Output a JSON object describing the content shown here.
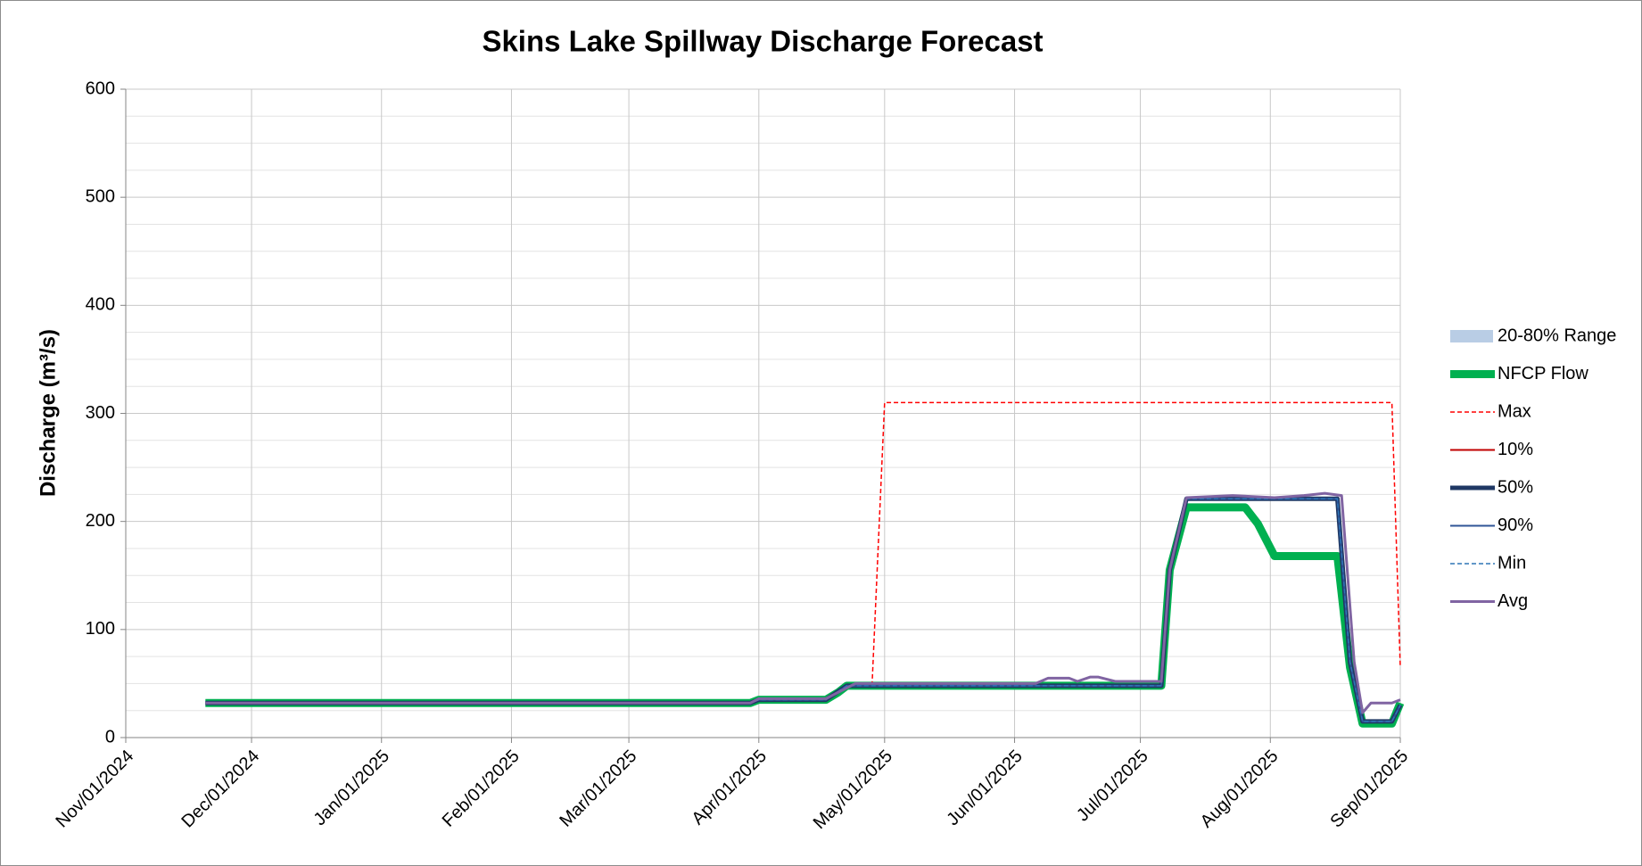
{
  "chart_data": {
    "type": "line",
    "title": "Skins Lake Spillway Discharge Forecast",
    "y_label": "Discharge (m³/s)",
    "xlim": [
      "2024-11-01",
      "2025-09-01"
    ],
    "xticks": [
      {
        "value": "2024-11-01",
        "label": "Nov/01/2024"
      },
      {
        "value": "2024-12-01",
        "label": "Dec/01/2024"
      },
      {
        "value": "2025-01-01",
        "label": "Jan/01/2025"
      },
      {
        "value": "2025-02-01",
        "label": "Feb/01/2025"
      },
      {
        "value": "2025-03-01",
        "label": "Mar/01/2025"
      },
      {
        "value": "2025-04-01",
        "label": "Apr/01/2025"
      },
      {
        "value": "2025-05-01",
        "label": "May/01/2025"
      },
      {
        "value": "2025-06-01",
        "label": "Jun/01/2025"
      },
      {
        "value": "2025-07-01",
        "label": "Jul/01/2025"
      },
      {
        "value": "2025-08-01",
        "label": "Aug/01/2025"
      },
      {
        "value": "2025-09-01",
        "label": "Sep/01/2025"
      }
    ],
    "ylim": [
      0,
      600
    ],
    "yticks": [
      0,
      100,
      200,
      300,
      400,
      500,
      600
    ],
    "yminorticks": [
      25,
      50,
      75,
      125,
      150,
      175,
      225,
      250,
      275,
      325,
      350,
      375,
      425,
      450,
      475,
      525,
      550,
      575
    ],
    "grid": true,
    "legend": "right",
    "series": [
      {
        "name": "20-80% Range",
        "kind": "range",
        "color": "#b9cde5",
        "x": [
          "2024-11-20",
          "2025-03-30",
          "2025-04-01",
          "2025-04-17",
          "2025-04-22",
          "2025-07-06",
          "2025-07-08",
          "2025-07-12",
          "2025-08-17",
          "2025-08-20",
          "2025-08-23",
          "2025-08-30",
          "2025-09-01"
        ],
        "values_low": [
          32,
          32,
          35,
          35,
          48,
          48,
          155,
          221,
          221,
          70,
          15,
          15,
          30
        ],
        "values": [
          32,
          32,
          35,
          35,
          48,
          48,
          155,
          221,
          221,
          70,
          15,
          15,
          30
        ]
      },
      {
        "name": "NFCP Flow",
        "color": "#00b050",
        "width": 9,
        "x": [
          "2024-11-20",
          "2025-03-30",
          "2025-04-01",
          "2025-04-17",
          "2025-04-20",
          "2025-04-22",
          "2025-07-06",
          "2025-07-08",
          "2025-07-12",
          "2025-07-26",
          "2025-07-29",
          "2025-08-02",
          "2025-08-17",
          "2025-08-20",
          "2025-08-23",
          "2025-08-30",
          "2025-09-01"
        ],
        "values": [
          32,
          32,
          35,
          35,
          42,
          48,
          48,
          155,
          213,
          213,
          198,
          168,
          168,
          65,
          13,
          13,
          32
        ]
      },
      {
        "name": "Max",
        "color": "#ff0000",
        "width": 1.5,
        "dash": "5,3",
        "x": [
          "2025-04-28",
          "2025-05-01",
          "2025-08-30",
          "2025-09-01"
        ],
        "values": [
          48,
          310,
          310,
          65
        ]
      },
      {
        "name": "10%",
        "color": "#c00000",
        "width": 2,
        "x": [
          "2024-11-20",
          "2025-03-30",
          "2025-04-01",
          "2025-04-17",
          "2025-04-22",
          "2025-07-06",
          "2025-07-08",
          "2025-07-12",
          "2025-08-17",
          "2025-08-20",
          "2025-08-23",
          "2025-08-30",
          "2025-09-01"
        ],
        "values": [
          32,
          32,
          35,
          35,
          48,
          48,
          155,
          221,
          221,
          70,
          15,
          15,
          30
        ]
      },
      {
        "name": "50%",
        "color": "#1f3864",
        "width": 5,
        "x": [
          "2024-11-20",
          "2025-03-30",
          "2025-04-01",
          "2025-04-17",
          "2025-04-22",
          "2025-07-06",
          "2025-07-08",
          "2025-07-12",
          "2025-08-17",
          "2025-08-20",
          "2025-08-23",
          "2025-08-30",
          "2025-09-01"
        ],
        "values": [
          32,
          32,
          35,
          35,
          48,
          48,
          155,
          221,
          221,
          70,
          15,
          15,
          30
        ]
      },
      {
        "name": "90%",
        "color": "#2f5597",
        "width": 2,
        "x": [
          "2024-11-20",
          "2025-03-30",
          "2025-04-01",
          "2025-04-17",
          "2025-04-22",
          "2025-07-06",
          "2025-07-08",
          "2025-07-12",
          "2025-08-17",
          "2025-08-20",
          "2025-08-23",
          "2025-08-30",
          "2025-09-01"
        ],
        "values": [
          32,
          32,
          35,
          35,
          48,
          48,
          155,
          221,
          221,
          70,
          15,
          15,
          30
        ]
      },
      {
        "name": "Min",
        "color": "#2e75b6",
        "width": 1.5,
        "dash": "5,3",
        "x": [
          "2024-11-20",
          "2025-03-30",
          "2025-04-01",
          "2025-04-17",
          "2025-04-22",
          "2025-07-06",
          "2025-07-08",
          "2025-07-12",
          "2025-08-17",
          "2025-08-20",
          "2025-08-23",
          "2025-08-30",
          "2025-09-01"
        ],
        "values": [
          32,
          32,
          35,
          35,
          48,
          48,
          155,
          221,
          221,
          70,
          15,
          15,
          30
        ]
      },
      {
        "name": "Avg",
        "color": "#8064a2",
        "width": 3,
        "x": [
          "2024-11-20",
          "2025-03-30",
          "2025-04-01",
          "2025-04-17",
          "2025-04-24",
          "2025-06-06",
          "2025-06-09",
          "2025-06-14",
          "2025-06-16",
          "2025-06-19",
          "2025-06-21",
          "2025-06-25",
          "2025-07-06",
          "2025-07-08",
          "2025-07-12",
          "2025-07-23",
          "2025-08-02",
          "2025-08-09",
          "2025-08-14",
          "2025-08-18",
          "2025-08-21",
          "2025-08-23",
          "2025-08-25",
          "2025-08-30",
          "2025-09-01"
        ],
        "values": [
          32,
          32,
          36,
          36,
          50,
          50,
          55,
          55,
          52,
          56,
          56,
          52,
          52,
          155,
          222,
          224,
          222,
          224,
          226,
          224,
          70,
          23,
          32,
          32,
          35
        ]
      }
    ]
  }
}
